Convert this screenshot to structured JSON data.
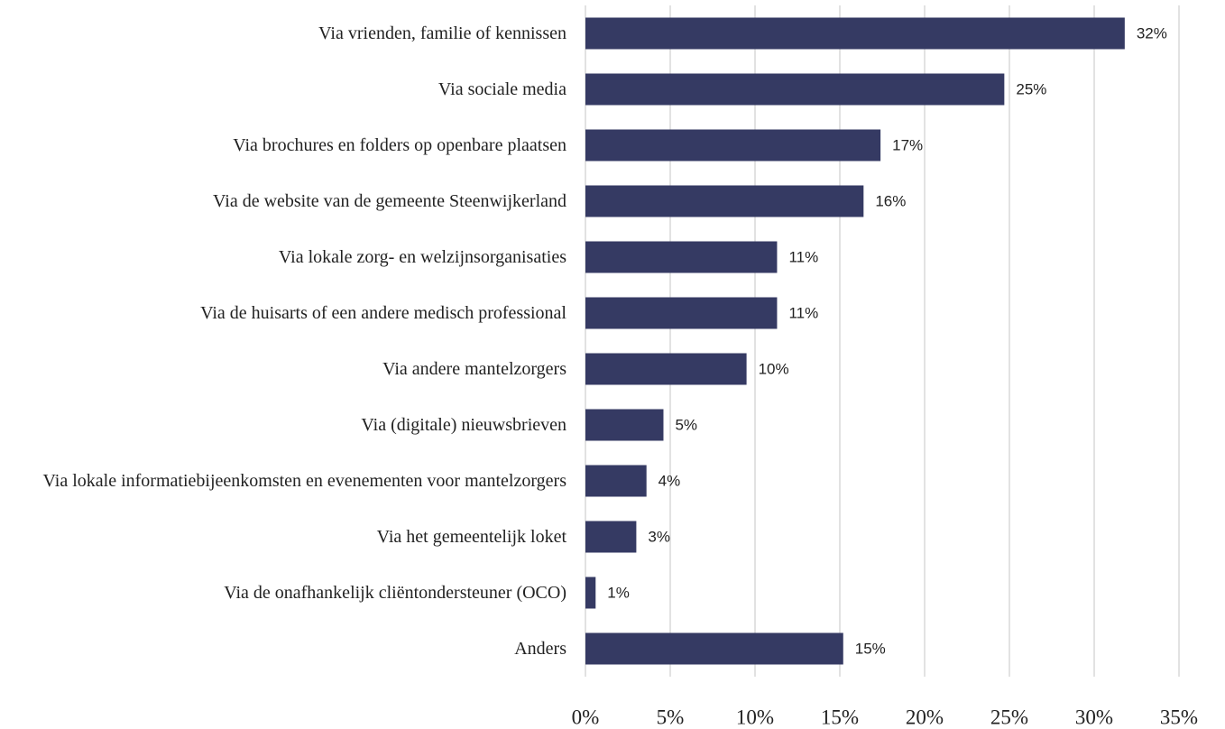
{
  "chart_data": {
    "type": "bar",
    "orientation": "horizontal",
    "categories": [
      "Via vrienden, familie of kennissen",
      "Via sociale media",
      "Via brochures en folders op openbare plaatsen",
      "Via de website van de gemeente Steenwijkerland",
      "Via lokale zorg- en welzijnsorganisaties",
      "Via de huisarts of een andere medisch professional",
      "Via andere mantelzorgers",
      "Via (digitale) nieuwsbrieven",
      "Via lokale informatiebijeenkomsten en evenementen voor mantelzorgers",
      "Via het gemeentelijk loket",
      "Via de onafhankelijk cliëntondersteuner (OCO)",
      "Anders"
    ],
    "values": [
      31.8,
      24.7,
      17.4,
      16.4,
      11.3,
      11.3,
      9.5,
      4.6,
      3.6,
      3.0,
      0.6,
      15.2
    ],
    "value_labels": [
      "32%",
      "25%",
      "17%",
      "16%",
      "11%",
      "11%",
      "10%",
      "5%",
      "4%",
      "3%",
      "1%",
      "15%"
    ],
    "color": "#353a63",
    "xlim": [
      0,
      35
    ],
    "xticks": [
      {
        "value": 0,
        "label": "0%"
      },
      {
        "value": 5,
        "label": "5%"
      },
      {
        "value": 10,
        "label": "10%"
      },
      {
        "value": 15,
        "label": "15%"
      },
      {
        "value": 20,
        "label": "20%"
      },
      {
        "value": 25,
        "label": "25%"
      },
      {
        "value": 30,
        "label": "30%"
      },
      {
        "value": 35,
        "label": "35%"
      }
    ],
    "grid": true
  }
}
